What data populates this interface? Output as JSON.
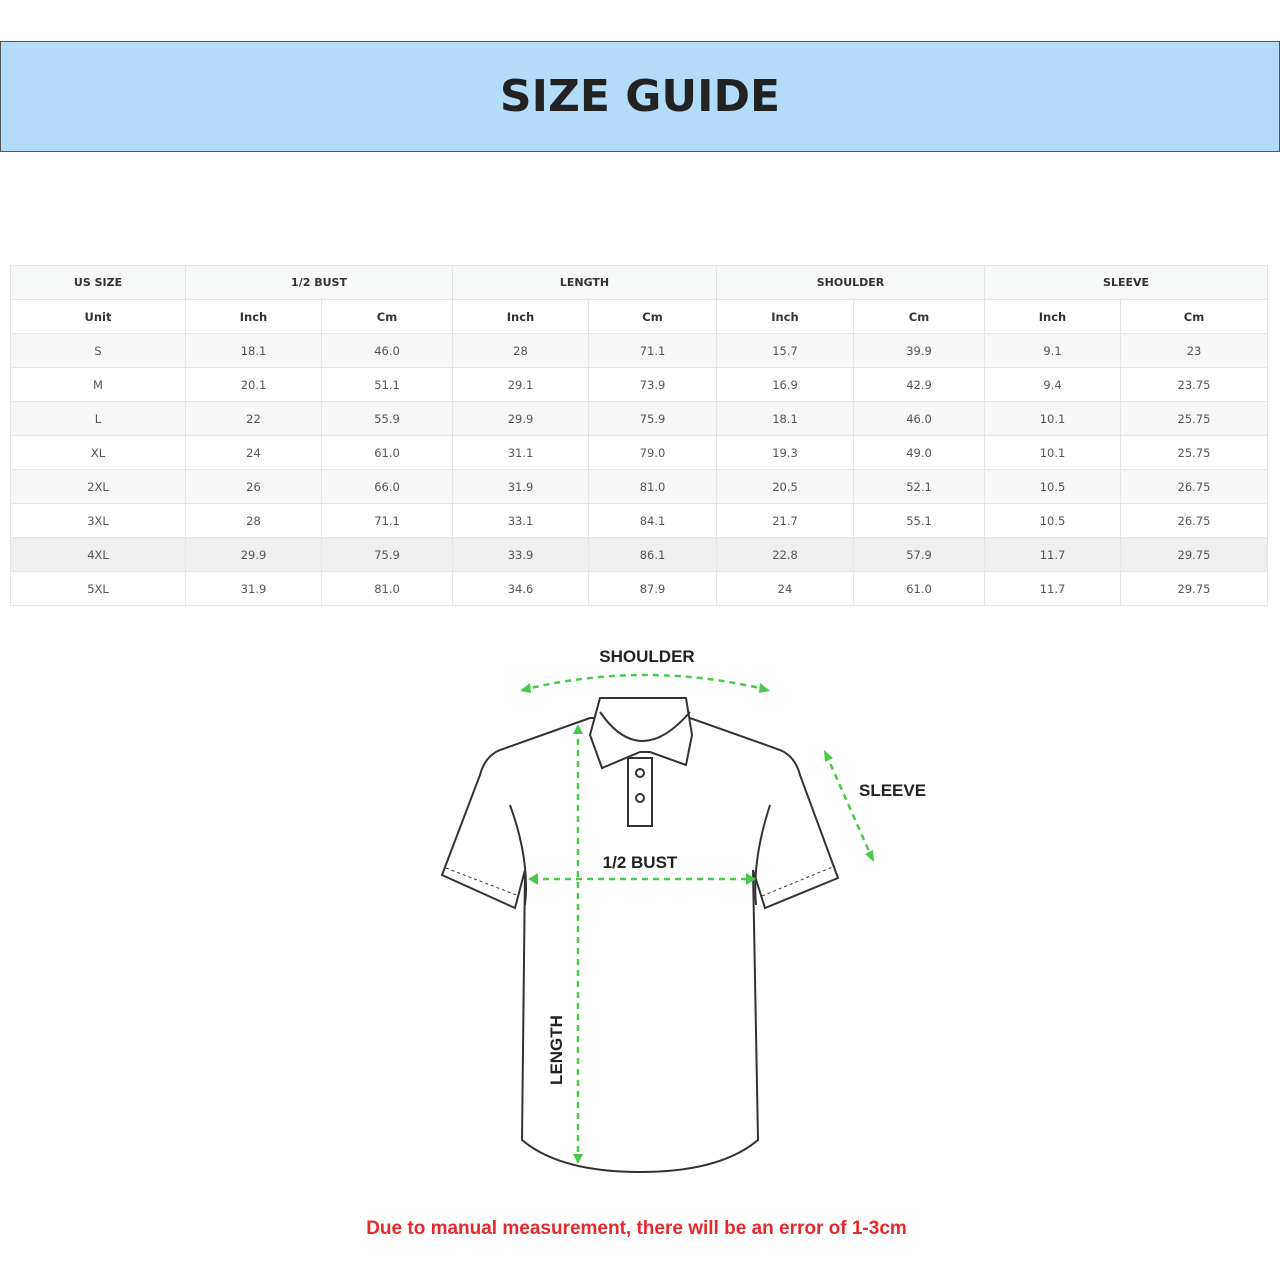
{
  "title": "SIZE GUIDE",
  "table": {
    "group_headers": [
      "US SIZE",
      "1/2 BUST",
      "LENGTH",
      "SHOULDER",
      "SLEEVE"
    ],
    "unit_label": "Unit",
    "units": [
      "Inch",
      "Cm",
      "Inch",
      "Cm",
      "Inch",
      "Cm",
      "Inch",
      "Cm"
    ],
    "rows": [
      [
        "S",
        "18.1",
        "46.0",
        "28",
        "71.1",
        "15.7",
        "39.9",
        "9.1",
        "23"
      ],
      [
        "M",
        "20.1",
        "51.1",
        "29.1",
        "73.9",
        "16.9",
        "42.9",
        "9.4",
        "23.75"
      ],
      [
        "L",
        "22",
        "55.9",
        "29.9",
        "75.9",
        "18.1",
        "46.0",
        "10.1",
        "25.75"
      ],
      [
        "XL",
        "24",
        "61.0",
        "31.1",
        "79.0",
        "19.3",
        "49.0",
        "10.1",
        "25.75"
      ],
      [
        "2XL",
        "26",
        "66.0",
        "31.9",
        "81.0",
        "20.5",
        "52.1",
        "10.5",
        "26.75"
      ],
      [
        "3XL",
        "28",
        "71.1",
        "33.1",
        "84.1",
        "21.7",
        "55.1",
        "10.5",
        "26.75"
      ],
      [
        "4XL",
        "29.9",
        "75.9",
        "33.9",
        "86.1",
        "22.8",
        "57.9",
        "11.7",
        "29.75"
      ],
      [
        "5XL",
        "31.9",
        "81.0",
        "34.6",
        "87.9",
        "24",
        "61.0",
        "11.7",
        "29.75"
      ]
    ]
  },
  "diagram": {
    "shoulder": "SHOULDER",
    "sleeve": "SLEEVE",
    "bust": "1/2 BUST",
    "length": "LENGTH",
    "arrow_color": "#4cc94c"
  },
  "note": "Due to manual measurement, there will be an error of 1-3cm",
  "colors": {
    "banner": "#b3dcfa",
    "note": "#e8292b"
  }
}
